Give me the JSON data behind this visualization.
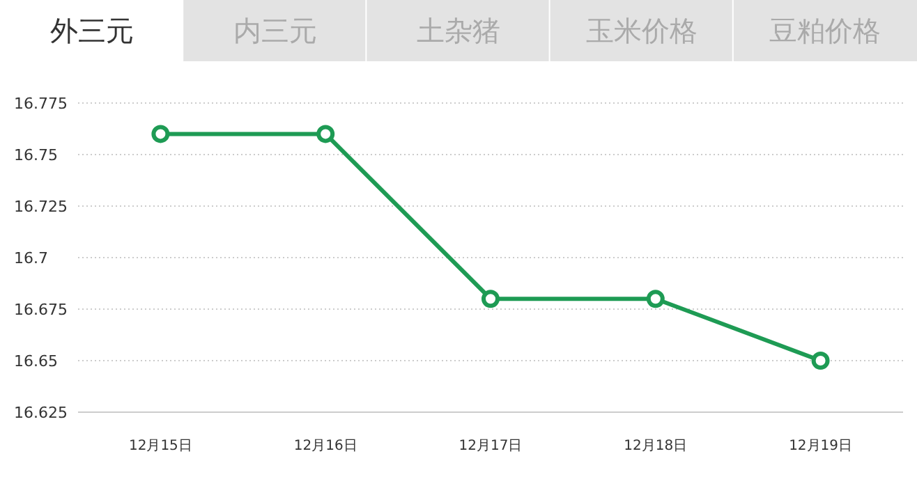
{
  "chart_data": {
    "type": "line",
    "title": "外三元",
    "annotations": [
      "内三元",
      "土杂猪",
      "玉米价格",
      "豆粕价格"
    ],
    "categories": [
      "12月15日",
      "12月16日",
      "12月17日",
      "12月18日",
      "12月19日"
    ],
    "series": [
      {
        "color": "#1e9b54",
        "values": [
          16.76,
          16.76,
          16.68,
          16.68,
          16.65
        ]
      }
    ],
    "ylim": [
      16.625,
      16.775
    ],
    "yticks": [
      16.625,
      16.65,
      16.675,
      16.7,
      16.725,
      16.75,
      16.775
    ],
    "grid": "y",
    "marker": "circle",
    "line_style": "solid"
  }
}
